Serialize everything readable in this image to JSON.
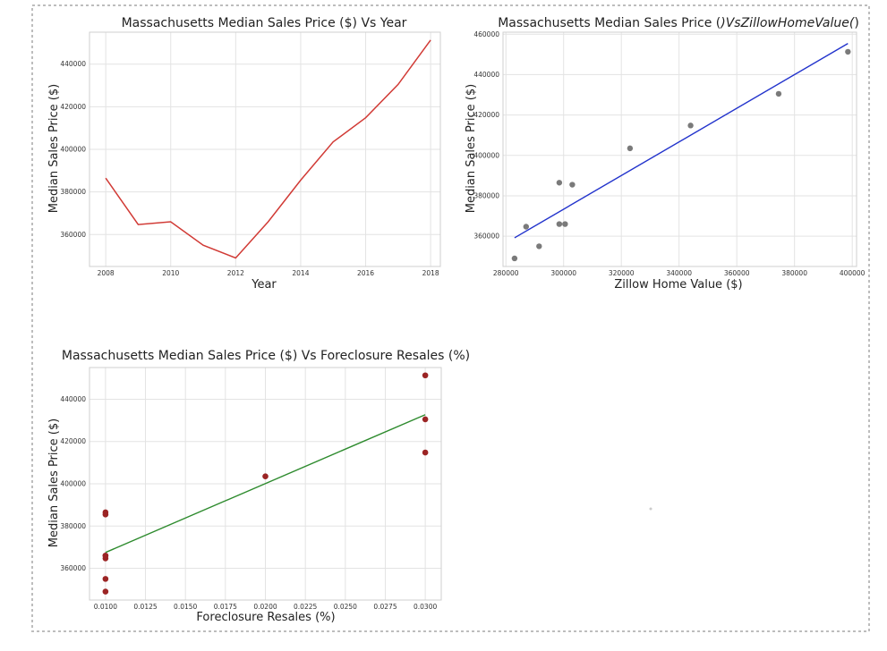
{
  "colors": {
    "line_red": "#d13a35",
    "fit_blue": "#2233cc",
    "fit_green": "#2e8b2e",
    "point_gray": "#7a7a7a",
    "point_darkred": "#9b2424",
    "border": "#bdbdbd"
  },
  "chart_data": [
    {
      "type": "line",
      "title": "Massachusetts Median Sales Price ($) Vs Year",
      "xlabel": "Year",
      "ylabel": "Median Sales Price ($)",
      "xlim": [
        2007.5,
        2018.3
      ],
      "ylim": [
        345000,
        455000
      ],
      "xticks": [
        2008,
        2010,
        2012,
        2014,
        2016,
        2018
      ],
      "yticks": [
        360000,
        380000,
        400000,
        420000,
        440000
      ],
      "xtick_labels": [
        "2008",
        "2010",
        "2012",
        "2014",
        "2016",
        "2018"
      ],
      "ytick_labels": [
        "360000",
        "380000",
        "400000",
        "420000",
        "440000"
      ],
      "grid": true,
      "series": [
        {
          "x": [
            2008,
            2009,
            2010,
            2011,
            2012,
            2013,
            2014,
            2015,
            2016,
            2017,
            2018
          ],
          "y": [
            386500,
            364700,
            366000,
            355000,
            349000,
            366000,
            385500,
            403500,
            414800,
            430500,
            451300
          ]
        }
      ]
    },
    {
      "type": "scatter",
      "title": "Massachusetts Median Sales Price ()VsZillowHomeValue()",
      "title_plain": "Massachusetts Median Sales Price (",
      "title_italic": ")VsZillowHomeValue(",
      "title_end": ")",
      "xlabel": "Zillow Home Value ($)",
      "ylabel": "Median Sales Price ($)",
      "xlim": [
        279000,
        401500
      ],
      "ylim": [
        345000,
        461000
      ],
      "xticks": [
        280000,
        300000,
        320000,
        340000,
        360000,
        380000,
        400000
      ],
      "yticks": [
        360000,
        380000,
        400000,
        420000,
        440000,
        460000
      ],
      "xtick_labels": [
        "280000",
        "300000",
        "320000",
        "340000",
        "360000",
        "380000",
        "400000"
      ],
      "ytick_labels": [
        "360000",
        "380000",
        "400000",
        "420000",
        "440000",
        "460000"
      ],
      "grid": true,
      "points": {
        "x": [
          283000,
          287000,
          291500,
          298500,
          298500,
          300500,
          303000,
          323000,
          344000,
          374500,
          398500
        ],
        "y": [
          349000,
          364700,
          355000,
          366000,
          386500,
          366000,
          385500,
          403500,
          414800,
          430500,
          451300
        ]
      },
      "fit_line": {
        "x": [
          283000,
          398500
        ],
        "y": [
          359200,
          455400
        ]
      }
    },
    {
      "type": "scatter",
      "title": "Massachusetts Median Sales Price ($) Vs Foreclosure Resales (%)",
      "xlabel": "Foreclosure Resales (%)",
      "ylabel": "Median Sales Price ($)",
      "xlim": [
        0.009,
        0.031
      ],
      "ylim": [
        345000,
        455000
      ],
      "xticks": [
        0.01,
        0.0125,
        0.015,
        0.0175,
        0.02,
        0.0225,
        0.025,
        0.0275,
        0.03
      ],
      "yticks": [
        360000,
        380000,
        400000,
        420000,
        440000
      ],
      "xtick_labels": [
        "0.0100",
        "0.0125",
        "0.0150",
        "0.0175",
        "0.0200",
        "0.0225",
        "0.0250",
        "0.0275",
        "0.0300"
      ],
      "ytick_labels": [
        "360000",
        "380000",
        "400000",
        "420000",
        "440000"
      ],
      "grid": true,
      "points": {
        "x": [
          0.01,
          0.01,
          0.01,
          0.01,
          0.01,
          0.01,
          0.01,
          0.02,
          0.03,
          0.03,
          0.03
        ],
        "y": [
          349000,
          355000,
          364700,
          366000,
          385500,
          386500,
          366000,
          403500,
          414800,
          430500,
          451300
        ]
      },
      "fit_line": {
        "x": [
          0.01,
          0.03
        ],
        "y": [
          367500,
          432700
        ]
      }
    }
  ]
}
